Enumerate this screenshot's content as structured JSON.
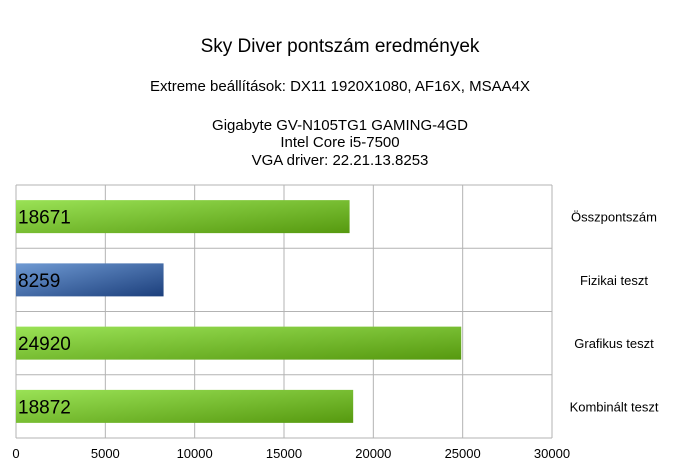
{
  "chart_data": {
    "type": "bar",
    "orientation": "horizontal",
    "title": "Sky Diver pontszám eredmények",
    "subtitle_lines": [
      "Extreme beállítások: DX11 1920X1080, AF16X, MSAA4X",
      "",
      "Gigabyte GV-N105TG1 GAMING-4GD",
      "Intel Core i5-7500",
      "VGA driver: 22.21.13.8253"
    ],
    "categories": [
      "Összpontszám",
      "Fizikai teszt",
      "Grafikus teszt",
      "Kombinált teszt"
    ],
    "values": [
      18671,
      8259,
      24920,
      18872
    ],
    "value_labels": [
      "18671",
      "8259",
      "24920",
      "18872"
    ],
    "bar_colors": [
      "#7ac231",
      "#3d6cab",
      "#7ac231",
      "#7ac231"
    ],
    "xlim": [
      0,
      30000
    ],
    "xticks": [
      0,
      5000,
      10000,
      15000,
      20000,
      25000,
      30000
    ],
    "xtick_labels": [
      "0",
      "5000",
      "10000",
      "15000",
      "20000",
      "25000",
      "30000"
    ],
    "grid": true,
    "legend": "none",
    "category_labels_position": "right"
  }
}
